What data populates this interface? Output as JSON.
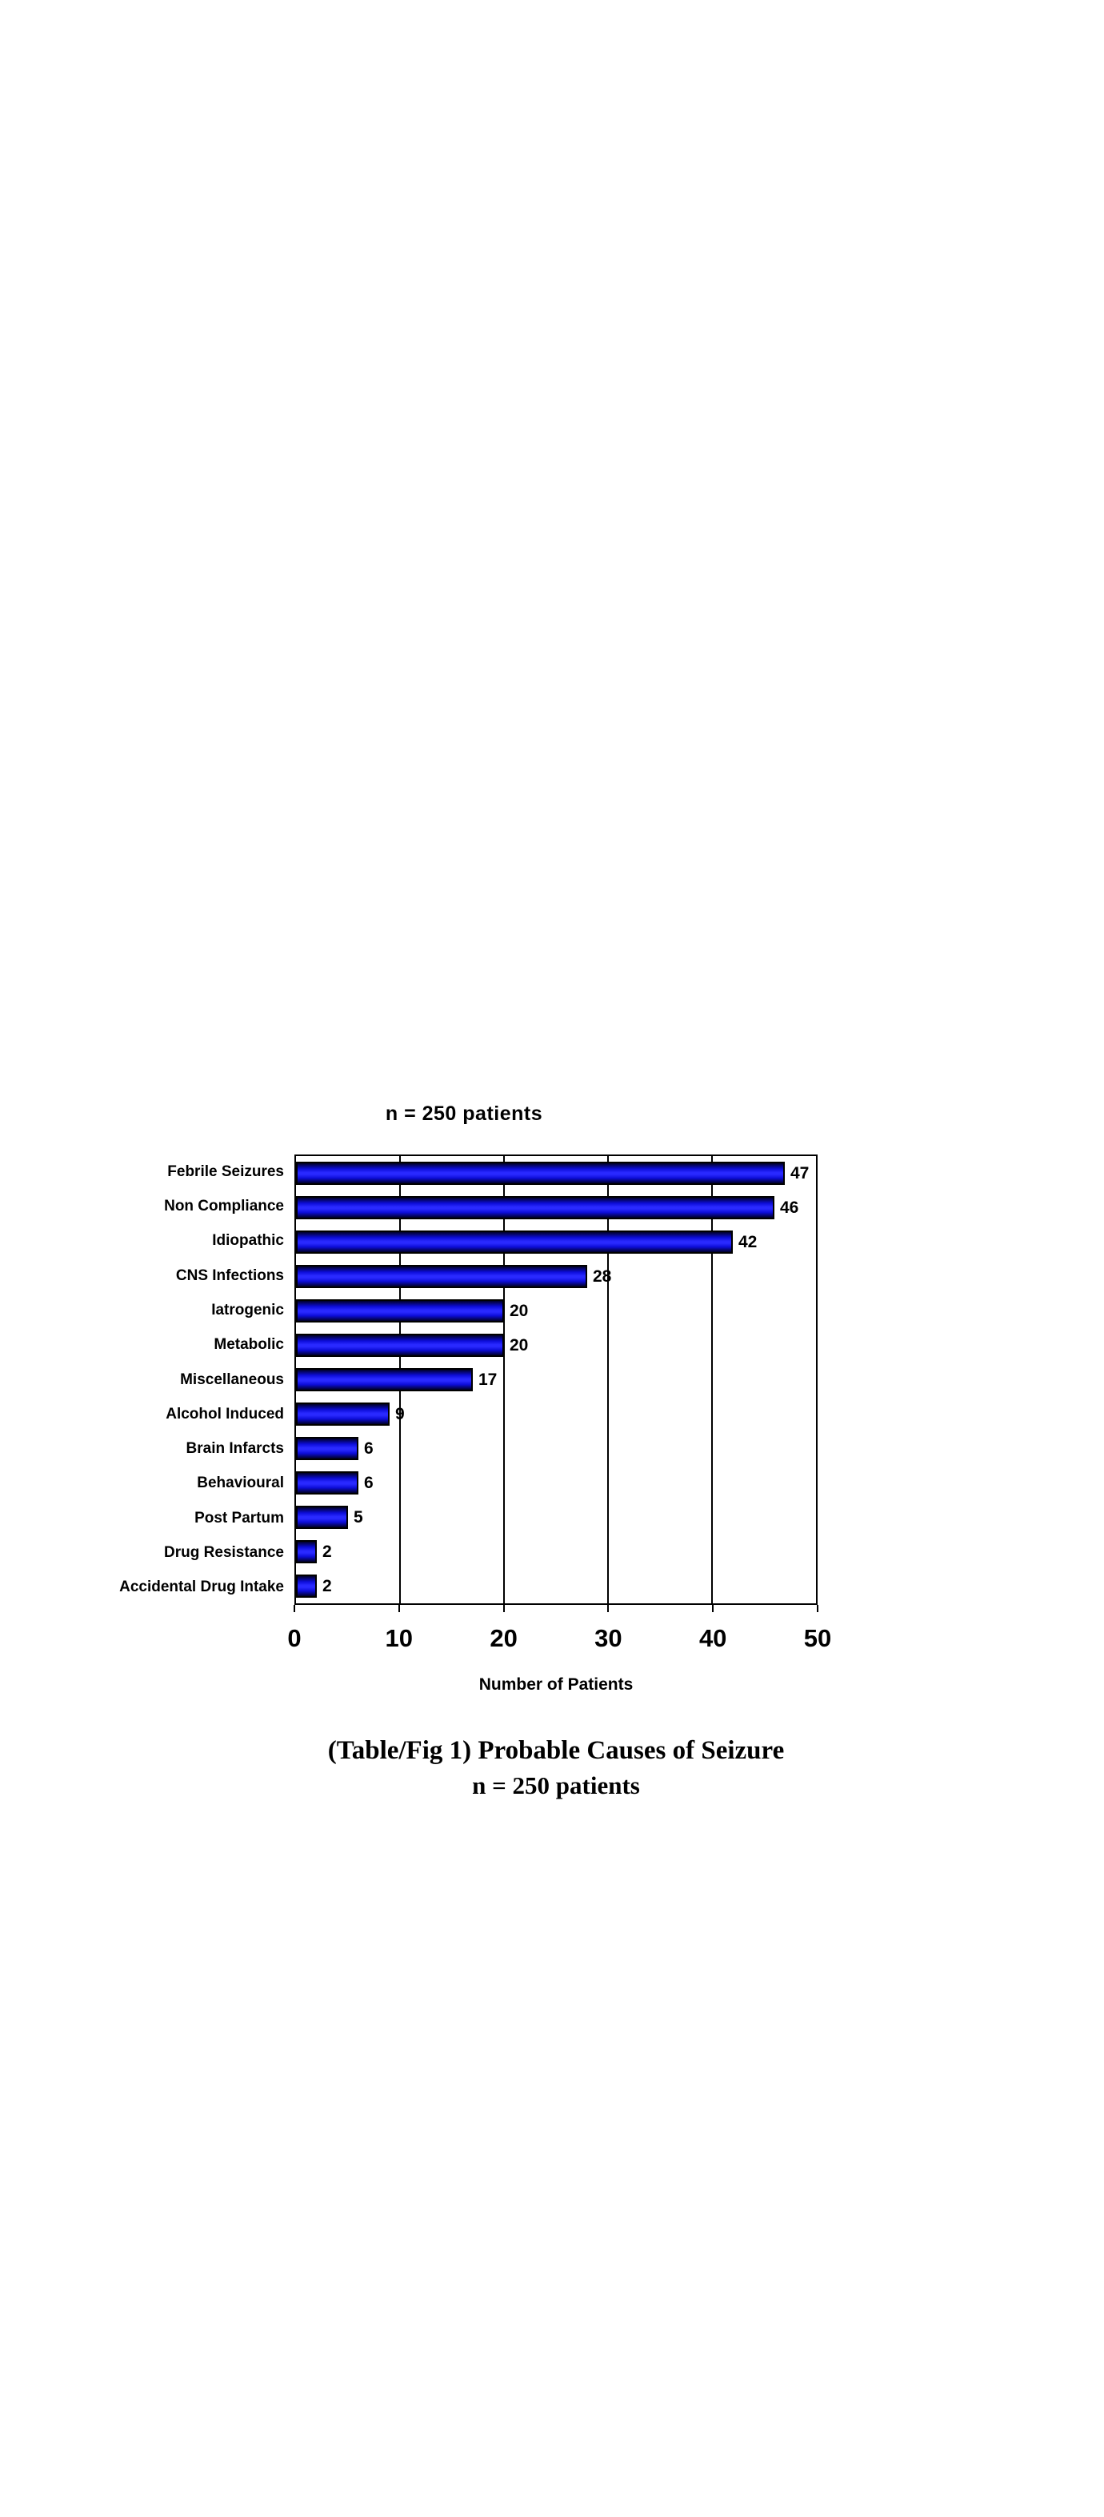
{
  "page": {
    "background_color": "#ffffff"
  },
  "chart_data": {
    "type": "bar",
    "orientation": "horizontal",
    "title": "n = 250 patients",
    "categories": [
      "Febrile Seizures",
      "Non Compliance",
      "Idiopathic",
      "CNS Infections",
      "Iatrogenic",
      "Metabolic",
      "Miscellaneous",
      "Alcohol Induced",
      "Brain Infarcts",
      "Behavioural",
      "Post Partum",
      "Drug Resistance",
      "Accidental Drug Intake"
    ],
    "values": [
      47,
      46,
      42,
      28,
      20,
      20,
      17,
      9,
      6,
      6,
      5,
      2,
      2
    ],
    "xlabel": "Number of Patients",
    "xlim": [
      0,
      50
    ],
    "xticks": [
      0,
      10,
      20,
      30,
      40,
      50
    ],
    "grid": true,
    "data_labels_shown": true,
    "bar_gradient_colors": [
      "#000026",
      "#2929ff",
      "#000026"
    ],
    "bar_border_color": "#000000",
    "gridline_color": "#000000",
    "text_color": "#000000",
    "caption": [
      "(Table/Fig 1) Probable Causes of Seizure",
      "n = 250 patients"
    ]
  }
}
